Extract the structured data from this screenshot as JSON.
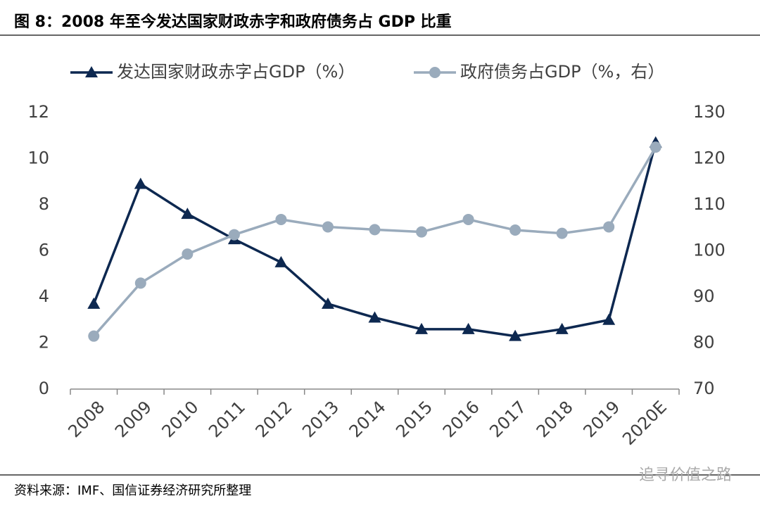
{
  "chart_data": {
    "type": "line",
    "title": "图 8：2008 年至今发达国家财政赤字和政府债务占 GDP 比重",
    "categories": [
      "2008",
      "2009",
      "2010",
      "2011",
      "2012",
      "2013",
      "2014",
      "2015",
      "2016",
      "2017",
      "2018",
      "2019",
      "2020E"
    ],
    "series": [
      {
        "name": "发达国家财政赤字占GDP（%）",
        "color": "#0d2850",
        "marker": "triangle",
        "values": [
          3.7,
          8.9,
          7.6,
          6.5,
          5.5,
          3.7,
          3.1,
          2.6,
          2.6,
          2.3,
          2.6,
          3.0,
          10.7
        ]
      },
      {
        "name": "政府债务占GDP（%，右）",
        "color": "#9aabbc",
        "marker": "circle",
        "axis": "y2",
        "values": [
          81.5,
          93.0,
          99.3,
          103.5,
          106.8,
          105.2,
          104.6,
          104.1,
          106.8,
          104.5,
          103.8,
          105.2,
          122.5
        ]
      }
    ],
    "ylim": [
      0,
      12
    ],
    "yticks": [
      0,
      2,
      4,
      6,
      8,
      10,
      12
    ],
    "y2lim": [
      70,
      130
    ],
    "y2ticks": [
      70,
      80,
      90,
      100,
      110,
      120,
      130
    ],
    "grid": false,
    "legend": "top",
    "source": "资料来源：IMF、国信证券经济研究所整理",
    "watermark": "追寻价值之路"
  }
}
